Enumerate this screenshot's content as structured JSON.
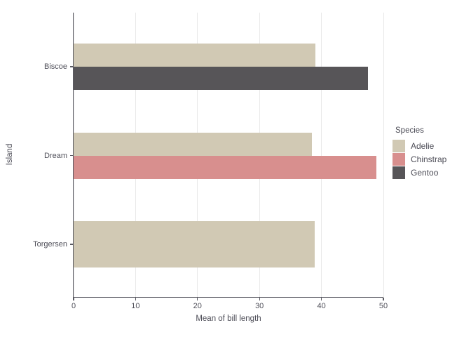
{
  "chart_data": {
    "type": "bar",
    "orientation": "horizontal",
    "title": "",
    "xlabel": "Mean of bill length",
    "ylabel": "Island",
    "xlim": [
      0,
      50
    ],
    "xticks": [
      0,
      10,
      20,
      30,
      40,
      50
    ],
    "categories": [
      "Biscoe",
      "Dream",
      "Torgersen"
    ],
    "series": [
      {
        "name": "Adelie",
        "color": "#d1c9b4",
        "values": [
          38.98,
          38.5,
          38.95
        ]
      },
      {
        "name": "Chinstrap",
        "color": "#d88f8e",
        "values": [
          null,
          48.83,
          null
        ]
      },
      {
        "name": "Gentoo",
        "color": "#575558",
        "values": [
          47.5,
          null,
          null
        ]
      }
    ],
    "legend": {
      "title": "Species",
      "position": "right"
    },
    "grid": {
      "vertical": true,
      "color": "#e9e9e9"
    },
    "axis_color": "#5a5a62",
    "text_color": "#50505a",
    "background": "#ffffff"
  }
}
